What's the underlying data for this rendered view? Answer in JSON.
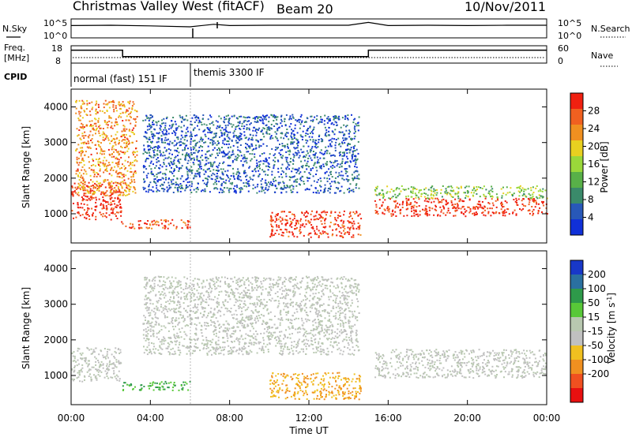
{
  "header": {
    "station": "Christmas Valley West (fitACF)",
    "beam": "Beam 20",
    "date": "10/Nov/2011"
  },
  "noise_panel": {
    "left_label": "N.Sky",
    "right_label": "N.Search",
    "left_ticks": [
      "10^5",
      "10^0"
    ],
    "right_ticks": [
      "10^5",
      "10^0"
    ]
  },
  "freq_panel": {
    "left_label_1": "Freq.",
    "left_label_2": "[MHz]",
    "left_ticks": [
      "18",
      "8"
    ],
    "right_label": "Nave",
    "right_ticks": [
      "60",
      "0"
    ]
  },
  "cpid": {
    "label": "CPID",
    "modes": [
      {
        "name": "normal (fast) 151 IF",
        "start": 0,
        "end": 6
      },
      {
        "name": "themis 3300 IF",
        "start": 6,
        "end": 24
      }
    ]
  },
  "axes": {
    "ylabel": "Slant Range [km]",
    "xlabel": "Time UT",
    "y_ticks": [
      "1000",
      "2000",
      "3000",
      "4000"
    ],
    "x_ticks": [
      "00:00",
      "04:00",
      "08:00",
      "12:00",
      "16:00",
      "20:00",
      "00:00"
    ]
  },
  "power_bar": {
    "label": "Power [dB]",
    "ticks": [
      "4",
      "8",
      "12",
      "16",
      "20",
      "24",
      "28"
    ],
    "colors": [
      "#1030d8",
      "#2858b8",
      "#3a8a6a",
      "#58b048",
      "#9ad83a",
      "#e8d020",
      "#f09020",
      "#f06020",
      "#f02010"
    ]
  },
  "velocity_bar": {
    "label": "Velocity [m s^-1]",
    "ticks": [
      "200",
      "100",
      "50",
      "15",
      "-15",
      "-50",
      "-100",
      "-200"
    ],
    "colors": [
      "#1838c8",
      "#2a70a0",
      "#2e9a4a",
      "#58c838",
      "#b8c8b0",
      "#c0c0c0",
      "#f0c020",
      "#f09020",
      "#f05020",
      "#e81010"
    ]
  },
  "chart_data": {
    "type": "heatmap",
    "x_range_hours": [
      0,
      24
    ],
    "y_range_km": [
      180,
      4500
    ],
    "noise": {
      "type": "line",
      "x_hours": [
        0,
        2,
        4,
        6,
        7.2,
        8,
        10,
        12,
        14,
        15,
        16,
        18,
        20,
        22,
        24
      ],
      "log10_sky": [
        3.4,
        3.5,
        3.3,
        3.0,
        3.8,
        3.4,
        3.5,
        3.5,
        3.5,
        4.4,
        3.4,
        3.5,
        3.4,
        3.5,
        3.5
      ]
    },
    "frequency_mhz": {
      "type": "line",
      "x_hours": [
        0,
        2.6,
        2.6,
        15.0,
        15.0,
        24
      ],
      "values": [
        16,
        16,
        11.5,
        11.5,
        16,
        16
      ]
    },
    "power_regions": [
      {
        "t0": 0.0,
        "t1": 2.5,
        "r0": 850,
        "r1": 1900,
        "level": 28
      },
      {
        "t0": 0.2,
        "t1": 3.3,
        "r0": 1500,
        "r1": 4200,
        "level": 22
      },
      {
        "t0": 2.5,
        "t1": 6.0,
        "r0": 600,
        "r1": 850,
        "level": 26
      },
      {
        "t0": 3.6,
        "t1": 14.5,
        "r0": 1600,
        "r1": 3800,
        "level": 5
      },
      {
        "t0": 10.0,
        "t1": 14.6,
        "r0": 350,
        "r1": 1100,
        "level": 27
      },
      {
        "t0": 15.3,
        "t1": 24.0,
        "r0": 950,
        "r1": 1450,
        "level": 28
      },
      {
        "t0": 15.3,
        "t1": 24.0,
        "r0": 1450,
        "r1": 1800,
        "level": 14
      }
    ],
    "velocity_regions": [
      {
        "t0": 0.0,
        "t1": 2.5,
        "r0": 850,
        "r1": 1800,
        "velocity": 0
      },
      {
        "t0": 2.5,
        "t1": 6.0,
        "r0": 600,
        "r1": 850,
        "velocity": 30
      },
      {
        "t0": 3.6,
        "t1": 14.5,
        "r0": 1600,
        "r1": 3800,
        "velocity": 0
      },
      {
        "t0": 10.0,
        "t1": 14.6,
        "r0": 350,
        "r1": 1100,
        "velocity": -50
      },
      {
        "t0": 15.3,
        "t1": 24.0,
        "r0": 950,
        "r1": 1750,
        "velocity": 0
      }
    ]
  }
}
